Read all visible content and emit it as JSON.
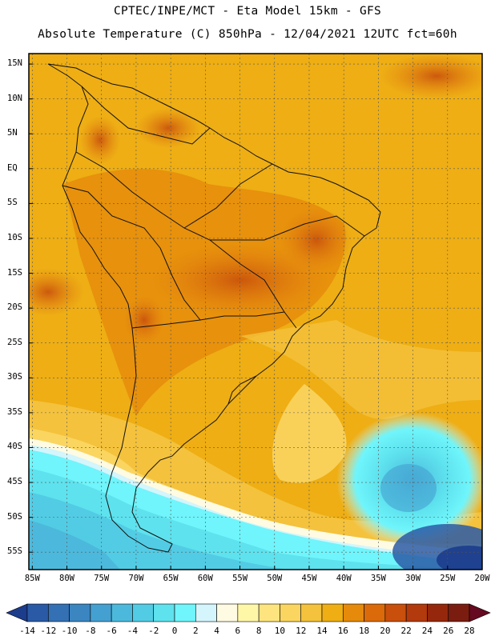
{
  "header": {
    "line1": "CPTEC/INPE/MCT -  Eta Model 15km - GFS",
    "line2": "Absolute Temperature (C) 850hPa - 12/04/2021 12UTC fct=60h"
  },
  "map": {
    "lat_labels": [
      "15N",
      "10N",
      "5N",
      "EQ",
      "5S",
      "10S",
      "15S",
      "20S",
      "25S",
      "30S",
      "35S",
      "40S",
      "45S",
      "50S",
      "55S"
    ],
    "lon_labels": [
      "85W",
      "80W",
      "75W",
      "70W",
      "65W",
      "60W",
      "55W",
      "50W",
      "45W",
      "40W",
      "35W",
      "30W",
      "25W",
      "20W"
    ],
    "lat_values": [
      15,
      10,
      5,
      0,
      -5,
      -10,
      -15,
      -20,
      -25,
      -30,
      -35,
      -40,
      -45,
      -50,
      -55
    ],
    "lon_values": [
      -85,
      -80,
      -75,
      -70,
      -65,
      -60,
      -55,
      -50,
      -45,
      -40,
      -35,
      -30,
      -25,
      -20
    ],
    "extent": {
      "lon_min": -85.5,
      "lon_max": -20,
      "lat_min": -57.5,
      "lat_max": 16.5
    }
  },
  "colorbar": {
    "labels": [
      "-14",
      "-12",
      "-10",
      "-8",
      "-6",
      "-4",
      "-2",
      "0",
      "2",
      "4",
      "6",
      "8",
      "10",
      "12",
      "14",
      "16",
      "18",
      "20",
      "22",
      "24",
      "26",
      "28"
    ],
    "colors": [
      "#1c3c8c",
      "#2a5aa6",
      "#3470b4",
      "#3b86c1",
      "#44a0d0",
      "#4cb9dc",
      "#52cce4",
      "#5ee2ee",
      "#6ff5fb",
      "#d3f5fb",
      "#fffbe2",
      "#fff7a8",
      "#fde47e",
      "#fad560",
      "#f4c23c",
      "#eeae14",
      "#e58a0a",
      "#db6a0a",
      "#c84f0c",
      "#b23a0c",
      "#95280c",
      "#7a1d10",
      "#650a20"
    ]
  }
}
